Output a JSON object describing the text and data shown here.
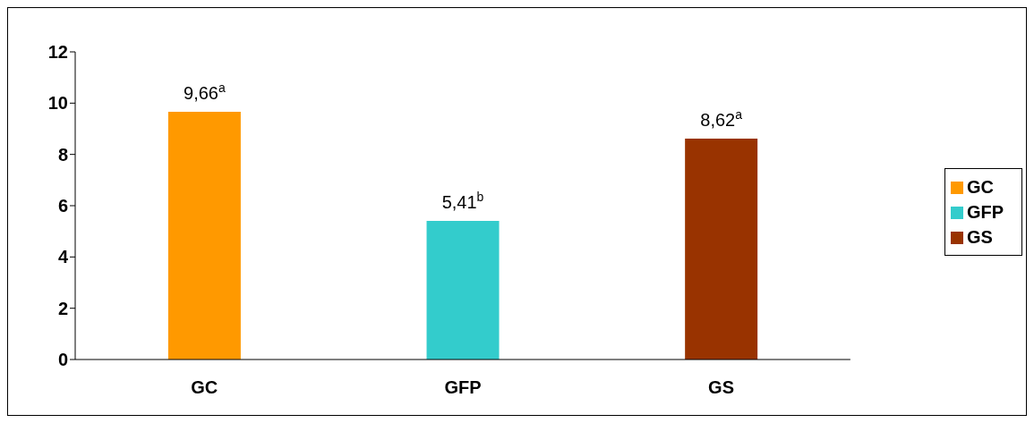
{
  "chart_data": {
    "type": "bar",
    "categories": [
      "GC",
      "GFP",
      "GS"
    ],
    "stacked": true,
    "series": [
      {
        "name": "GC",
        "color": "#ff9900",
        "values": [
          9.66,
          null,
          null
        ],
        "value_labels": [
          "9,66$^{a}$",
          null,
          null
        ]
      },
      {
        "name": "GFP",
        "color": "#33cccc",
        "values": [
          null,
          5.41,
          null
        ],
        "value_labels": [
          null,
          "5,41$^{b}$",
          null
        ]
      },
      {
        "name": "GS",
        "color": "#993300",
        "values": [
          null,
          null,
          8.62
        ],
        "value_labels": [
          null,
          null,
          "8,62$^{a}$"
        ]
      }
    ],
    "ylim": [
      0,
      12
    ],
    "yticks": [
      0,
      2,
      4,
      6,
      8,
      10,
      12
    ],
    "grid": false,
    "legend": "right"
  }
}
